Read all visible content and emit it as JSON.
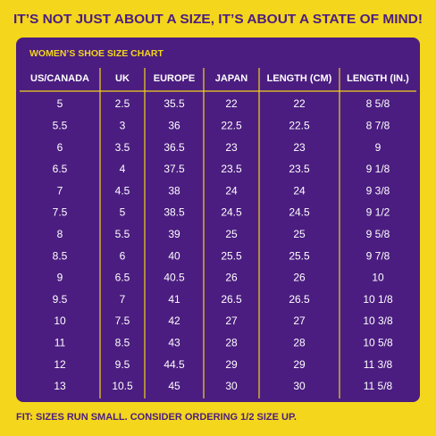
{
  "header": {
    "title": "IT’S NOT JUST ABOUT A SIZE, IT’S ABOUT A STATE OF MIND!"
  },
  "table": {
    "title": "WOMEN’S SHOE SIZE CHART",
    "columns": [
      "US/CANADA",
      "UK",
      "EUROPE",
      "JAPAN",
      "LENGTH (CM)",
      "LENGTH (IN.)"
    ],
    "rows": [
      [
        "5",
        "2.5",
        "35.5",
        "22",
        "22",
        "8 5/8"
      ],
      [
        "5.5",
        "3",
        "36",
        "22.5",
        "22.5",
        "8 7/8"
      ],
      [
        "6",
        "3.5",
        "36.5",
        "23",
        "23",
        "9"
      ],
      [
        "6.5",
        "4",
        "37.5",
        "23.5",
        "23.5",
        "9 1/8"
      ],
      [
        "7",
        "4.5",
        "38",
        "24",
        "24",
        "9 3/8"
      ],
      [
        "7.5",
        "5",
        "38.5",
        "24.5",
        "24.5",
        "9 1/2"
      ],
      [
        "8",
        "5.5",
        "39",
        "25",
        "25",
        "9 5/8"
      ],
      [
        "8.5",
        "6",
        "40",
        "25.5",
        "25.5",
        "9 7/8"
      ],
      [
        "9",
        "6.5",
        "40.5",
        "26",
        "26",
        "10"
      ],
      [
        "9.5",
        "7",
        "41",
        "26.5",
        "26.5",
        "10 1/8"
      ],
      [
        "10",
        "7.5",
        "42",
        "27",
        "27",
        "10 3/8"
      ],
      [
        "11",
        "8.5",
        "43",
        "28",
        "28",
        "10 5/8"
      ],
      [
        "12",
        "9.5",
        "44.5",
        "29",
        "29",
        "11 3/8"
      ],
      [
        "13",
        "10.5",
        "45",
        "30",
        "30",
        "11 5/8"
      ]
    ]
  },
  "footer": {
    "note": "FIT: SIZES RUN SMALL. CONSIDER ORDERING 1/2 SIZE UP."
  }
}
